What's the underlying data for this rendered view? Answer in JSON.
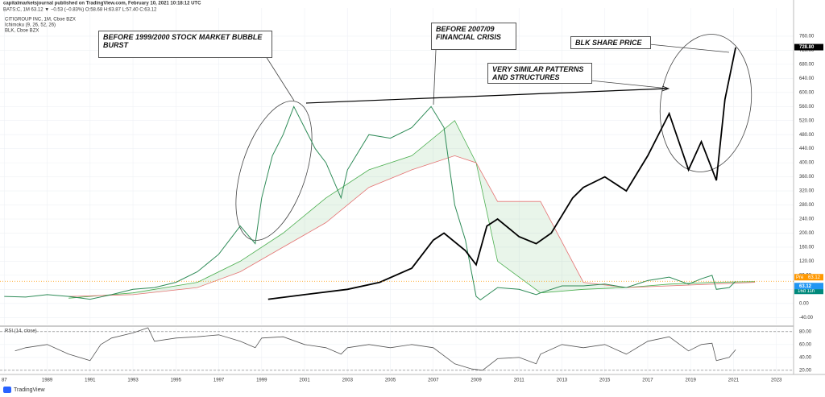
{
  "header": {
    "publisher": "capitalmarketsjournal published on TradingView.com, February 10, 2021 10:18:12 UTC",
    "symbol_line": "BATS:C, 1M 63.12 ▼ −0.53 (−0.83%) O:58.68 H:63.87 L:57.40 C:63.12"
  },
  "annotations": [
    "BEFORE 1999/2000 STOCK MARKET BUBBLE BURST",
    "BEFORE 2007/09 FINANCIAL CRISIS",
    "BLK SHARE PRICE",
    "VERY SIMILAR PATTERNS AND STRUCTURES"
  ],
  "footer": "TradingView",
  "chart_data": [
    {
      "type": "line",
      "grid": true,
      "xlim": [
        1986.8,
        2023.8
      ],
      "ylim": [
        -60,
        840
      ],
      "xticks": [
        {
          "value": 1987,
          "label": "87"
        },
        1989,
        1991,
        1993,
        1995,
        1997,
        1999,
        2001,
        2003,
        2005,
        2007,
        2009,
        2011,
        2013,
        2015,
        2017,
        2019,
        2021,
        2023
      ],
      "yticks": [
        {
          "value": 760,
          "label": "760.00"
        },
        {
          "value": 720,
          "label": "720.00"
        },
        {
          "value": 680,
          "label": "680.00"
        },
        {
          "value": 640,
          "label": "640.00"
        },
        {
          "value": 600,
          "label": "600.00"
        },
        {
          "value": 560,
          "label": "560.00"
        },
        {
          "value": 520,
          "label": "520.00"
        },
        {
          "value": 480,
          "label": "480.00"
        },
        {
          "value": 440,
          "label": "440.00"
        },
        {
          "value": 400,
          "label": "400.00"
        },
        {
          "value": 360,
          "label": "360.00"
        },
        {
          "value": 320,
          "label": "320.00"
        },
        {
          "value": 280,
          "label": "280.00"
        },
        {
          "value": 240,
          "label": "240.00"
        },
        {
          "value": 200,
          "label": "200.00"
        },
        {
          "value": 160,
          "label": "160.00"
        },
        {
          "value": 120,
          "label": "120.00"
        },
        {
          "value": 80,
          "label": "80.00"
        },
        {
          "value": 40,
          "label": "40.00"
        },
        {
          "value": 0,
          "label": "0.00"
        },
        {
          "value": -40,
          "label": "-40.00"
        }
      ],
      "cloud": {
        "name": "Ichimoku (9, 26, 52, 26)",
        "x": [
          1990,
          1993,
          1996,
          1998,
          2000,
          2002,
          2004,
          2006,
          2008,
          2009,
          2010,
          2012,
          2014,
          2016,
          2018,
          2020,
          2022
        ],
        "span_a": [
          15,
          30,
          60,
          120,
          200,
          300,
          380,
          420,
          520,
          400,
          120,
          30,
          40,
          45,
          55,
          60,
          62
        ],
        "color_a": "#4caf50",
        "span_b": [
          20,
          25,
          45,
          90,
          160,
          230,
          330,
          380,
          420,
          400,
          290,
          290,
          60,
          45,
          50,
          55,
          60
        ],
        "color_b": "#e57373"
      },
      "series": [
        {
          "name": "CITIGROUP INC, 1M, Cboe BZX",
          "color": "#2e8b57",
          "width": 1,
          "x": [
            1987,
            1988,
            1989,
            1990,
            1991,
            1992,
            1993,
            1994,
            1995,
            1996,
            1997,
            1998,
            1998.7,
            1999,
            1999.5,
            2000,
            2000.5,
            2001,
            2001.5,
            2002,
            2002.7,
            2003,
            2003.5,
            2004,
            2005,
            2006,
            2006.9,
            2007.5,
            2008,
            2008.5,
            2009,
            2009.2,
            2010,
            2011,
            2011.8,
            2012,
            2013,
            2014,
            2015,
            2016,
            2017,
            2018,
            2018.9,
            2019.5,
            2020,
            2020.2,
            2020.8,
            2021.1
          ],
          "values": [
            20,
            18,
            25,
            20,
            12,
            25,
            40,
            45,
            60,
            90,
            140,
            220,
            170,
            300,
            420,
            480,
            560,
            500,
            440,
            400,
            300,
            380,
            430,
            480,
            470,
            500,
            560,
            500,
            280,
            180,
            20,
            10,
            45,
            40,
            25,
            30,
            50,
            50,
            55,
            45,
            65,
            75,
            55,
            70,
            80,
            40,
            45,
            63
          ]
        },
        {
          "name": "BLK, Cboe BZX",
          "color": "#000000",
          "width": 1.8,
          "x": [
            1999.3,
            2001,
            2003,
            2004.5,
            2006,
            2007,
            2007.5,
            2008.5,
            2009,
            2009.5,
            2010,
            2011,
            2011.8,
            2012.5,
            2013.5,
            2014,
            2015,
            2016,
            2017,
            2018,
            2018.9,
            2019.5,
            2020.2,
            2020.6,
            2021.1
          ],
          "values": [
            12,
            25,
            40,
            60,
            100,
            180,
            200,
            150,
            110,
            220,
            240,
            190,
            170,
            200,
            300,
            330,
            360,
            320,
            420,
            540,
            380,
            460,
            350,
            580,
            728
          ]
        }
      ],
      "price_tags": [
        {
          "value": 728.8,
          "label": "728.80",
          "color": "#000000"
        },
        {
          "value": 63.12,
          "label": "63.12",
          "color": "#2196f3"
        }
      ],
      "pre": "Pre",
      "countdown": "16d 11h"
    },
    {
      "type": "line",
      "title": "RSI (14, close)",
      "grid": true,
      "xlim": [
        1986.8,
        2023.8
      ],
      "ylim": [
        16,
        86
      ],
      "yticks": [
        {
          "value": 80,
          "label": "80.00"
        },
        {
          "value": 60,
          "label": "60.00"
        },
        {
          "value": 40,
          "label": "40.00"
        },
        {
          "value": 20,
          "label": "20.00"
        }
      ],
      "levels": [
        20,
        80
      ],
      "series": [
        {
          "color": "#555555",
          "width": 0.8,
          "x": [
            1987.5,
            1988,
            1989,
            1990,
            1991,
            1991.5,
            1992,
            1993,
            1993.7,
            1994,
            1995,
            1996,
            1997,
            1998,
            1998.7,
            1999,
            2000,
            2001,
            2002,
            2002.7,
            2003,
            2004,
            2005,
            2006,
            2007,
            2008,
            2008.8,
            2009.3,
            2010,
            2011,
            2011.8,
            2012,
            2013,
            2014,
            2015,
            2016,
            2017,
            2018,
            2018.9,
            2019.5,
            2020,
            2020.2,
            2020.8,
            2021.1
          ],
          "values": [
            50,
            55,
            60,
            45,
            35,
            60,
            70,
            78,
            86,
            65,
            70,
            72,
            75,
            65,
            55,
            70,
            72,
            60,
            55,
            45,
            55,
            60,
            55,
            60,
            55,
            30,
            22,
            20,
            38,
            40,
            30,
            45,
            60,
            55,
            60,
            45,
            65,
            72,
            50,
            60,
            62,
            35,
            40,
            52
          ]
        }
      ]
    }
  ]
}
